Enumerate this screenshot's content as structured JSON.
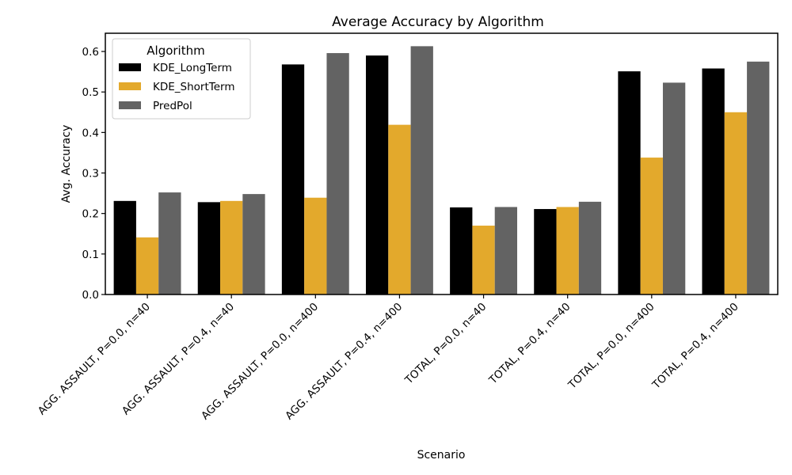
{
  "chart_data": {
    "type": "bar",
    "title": "Average Accuracy by Algorithm",
    "xlabel": "Scenario",
    "ylabel": "Avg. Accuracy",
    "ylim": [
      0,
      0.645
    ],
    "yticks": [
      "0.0",
      "0.1",
      "0.2",
      "0.3",
      "0.4",
      "0.5",
      "0.6"
    ],
    "grid": false,
    "legend": {
      "title": "Algorithm",
      "placement": "top-left"
    },
    "categories": [
      "AGG. ASSAULT, P=0.0, n=40",
      "AGG. ASSAULT, P=0.4, n=40",
      "AGG. ASSAULT, P=0.0, n=400",
      "AGG. ASSAULT, P=0.4, n=400",
      "TOTAL, P=0.0, n=40",
      "TOTAL, P=0.4, n=40",
      "TOTAL, P=0.0, n=400",
      "TOTAL, P=0.4, n=400"
    ],
    "series": [
      {
        "name": "KDE_LongTerm",
        "color": "#000000",
        "values": [
          0.231,
          0.228,
          0.568,
          0.59,
          0.215,
          0.211,
          0.551,
          0.558
        ]
      },
      {
        "name": "KDE_ShortTerm",
        "color": "#e3a92c",
        "values": [
          0.141,
          0.231,
          0.239,
          0.419,
          0.17,
          0.216,
          0.338,
          0.45
        ]
      },
      {
        "name": "PredPol",
        "color": "#636363",
        "values": [
          0.252,
          0.248,
          0.596,
          0.613,
          0.216,
          0.229,
          0.523,
          0.575
        ]
      }
    ]
  }
}
